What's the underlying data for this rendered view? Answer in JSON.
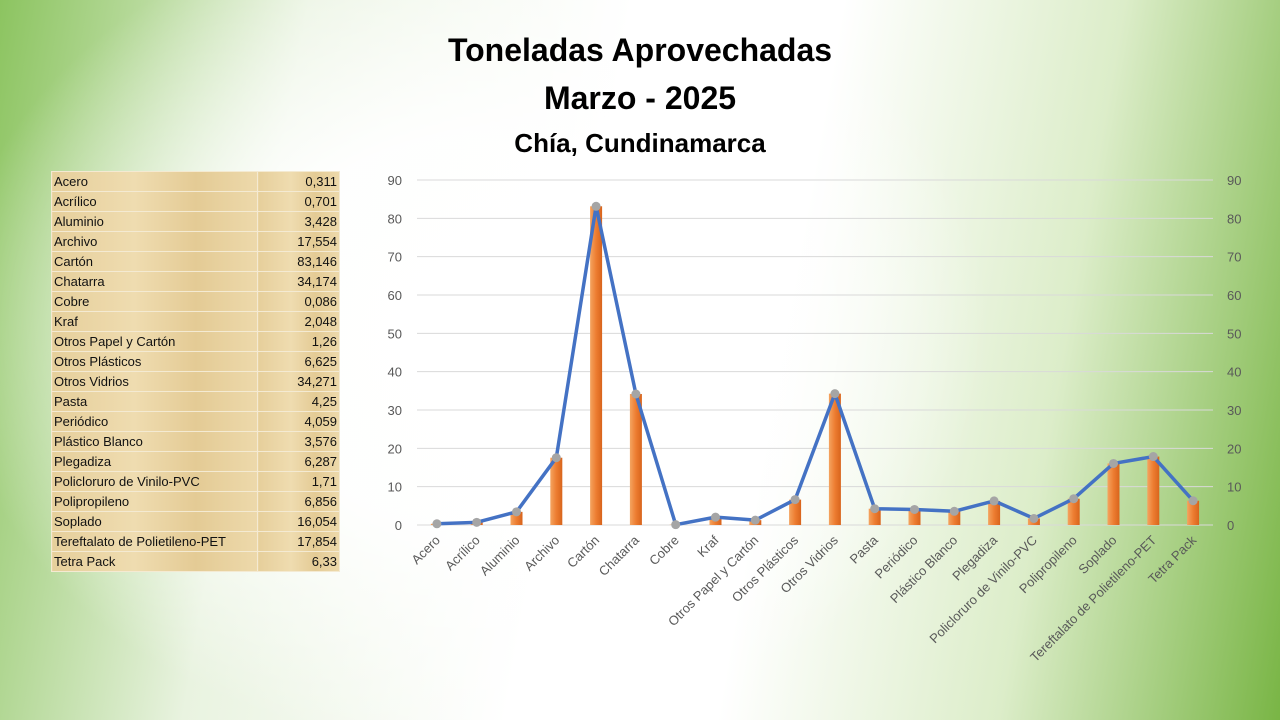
{
  "title": "Toneladas Aprovechadas",
  "subtitle": "Marzo - 2025",
  "location": "Chía, Cundinamarca",
  "table": {
    "rows": [
      [
        "Acero",
        "0,311"
      ],
      [
        "Acrílico",
        "0,701"
      ],
      [
        "Aluminio",
        "3,428"
      ],
      [
        "Archivo",
        "17,554"
      ],
      [
        "Cartón",
        "83,146"
      ],
      [
        "Chatarra",
        "34,174"
      ],
      [
        "Cobre",
        "0,086"
      ],
      [
        "Kraf",
        "2,048"
      ],
      [
        "Otros Papel y Cartón",
        "1,26"
      ],
      [
        "Otros Plásticos",
        "6,625"
      ],
      [
        "Otros Vidrios",
        "34,271"
      ],
      [
        "Pasta",
        "4,25"
      ],
      [
        "Periódico",
        "4,059"
      ],
      [
        "Plástico Blanco",
        "3,576"
      ],
      [
        "Plegadiza",
        "6,287"
      ],
      [
        "Policloruro de Vinilo-PVC",
        "1,71"
      ],
      [
        "Polipropileno",
        "6,856"
      ],
      [
        "Soplado",
        "16,054"
      ],
      [
        "Tereftalato de Polietileno-PET",
        "17,854"
      ],
      [
        "Tetra Pack",
        "6,33"
      ]
    ]
  },
  "chart_data": {
    "type": "bar+line",
    "categories": [
      "Acero",
      "Acrílico",
      "Aluminio",
      "Archivo",
      "Cartón",
      "Chatarra",
      "Cobre",
      "Kraf",
      "Otros Papel y Cartón",
      "Otros Plásticos",
      "Otros Vidrios",
      "Pasta",
      "Periódico",
      "Plástico Blanco",
      "Plegadiza",
      "Policloruro de Vinilo-PVC",
      "Polipropileno",
      "Soplado",
      "Tereftalato de Polietileno-PET",
      "Tetra Pack"
    ],
    "series": [
      {
        "type": "bar",
        "color": "#ed7d31",
        "values": [
          0.311,
          0.701,
          3.428,
          17.554,
          83.146,
          34.174,
          0.086,
          2.048,
          1.26,
          6.625,
          34.271,
          4.25,
          4.059,
          3.576,
          6.287,
          1.71,
          6.856,
          16.054,
          17.854,
          6.33
        ]
      },
      {
        "type": "line",
        "color": "#4472c4",
        "marker_color": "#a5a5a5",
        "values": [
          0.311,
          0.701,
          3.428,
          17.554,
          83.146,
          34.174,
          0.086,
          2.048,
          1.26,
          6.625,
          34.271,
          4.25,
          4.059,
          3.576,
          6.287,
          1.71,
          6.856,
          16.054,
          17.854,
          6.33
        ]
      }
    ],
    "ylim": [
      0,
      90
    ],
    "yticks": [
      0,
      10,
      20,
      30,
      40,
      50,
      60,
      70,
      80,
      90
    ],
    "secondary_yticks": [
      0,
      10,
      20,
      30,
      40,
      50,
      60,
      70,
      80,
      90
    ],
    "grid": true,
    "legend": "none"
  }
}
